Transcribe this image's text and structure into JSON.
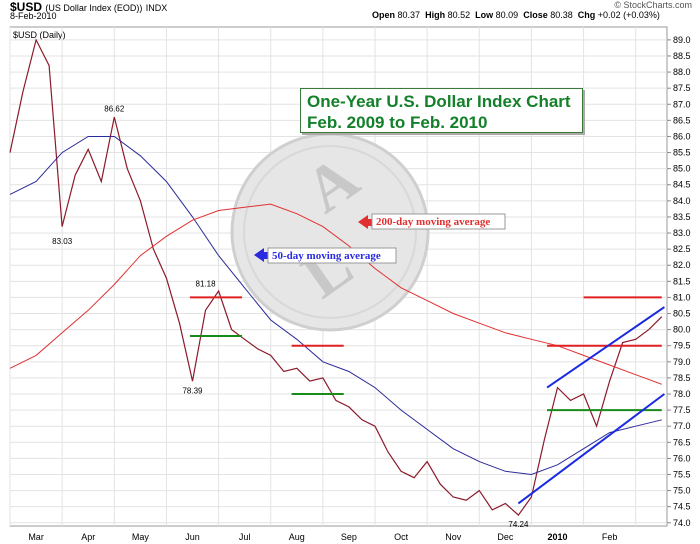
{
  "header": {
    "symbol": "$USD",
    "name": "(US Dollar Index (EOD))",
    "exchange": "INDX",
    "date": "8-Feb-2010",
    "watermark": "© StockCharts.com",
    "panel_label": "$USD (Daily)",
    "open_label": "Open",
    "open": "80.37",
    "high_label": "High",
    "high": "80.52",
    "low_label": "Low",
    "low": "80.09",
    "close_label": "Close",
    "close": "80.38",
    "chg_label": "Chg",
    "chg": "+0.02 (+0.03%)"
  },
  "annotation": {
    "title_line1": "One-Year U.S. Dollar Index Chart",
    "title_line2": "Feb. 2009 to Feb. 2010",
    "ma200_label": "200-day moving average",
    "ma50_label": "50-day moving average"
  },
  "colors": {
    "price": "#8b1a2b",
    "ma50": "#2a2a9a",
    "ma200": "#e03030",
    "resistance": "#e02020",
    "support": "#1a8a1a",
    "trend": "#1a2ae0",
    "title": "#13802a"
  },
  "chart_data": {
    "type": "line",
    "title": "$USD (Daily)",
    "ylim": [
      73.9,
      89.4
    ],
    "y_ticks": [
      "89.0",
      "88.5",
      "88.0",
      "87.5",
      "87.0",
      "86.5",
      "86.0",
      "85.5",
      "85.0",
      "84.5",
      "84.0",
      "83.5",
      "83.0",
      "82.5",
      "82.0",
      "81.5",
      "81.0",
      "80.5",
      "80.0",
      "79.5",
      "79.0",
      "78.5",
      "78.0",
      "77.5",
      "77.0",
      "76.5",
      "76.0",
      "75.5",
      "75.0",
      "74.5",
      "74.0"
    ],
    "x_labels": [
      {
        "t": 0.5,
        "label": "Mar"
      },
      {
        "t": 1.5,
        "label": "Apr"
      },
      {
        "t": 2.5,
        "label": "May"
      },
      {
        "t": 3.5,
        "label": "Jun"
      },
      {
        "t": 4.5,
        "label": "Jul"
      },
      {
        "t": 5.5,
        "label": "Aug"
      },
      {
        "t": 6.5,
        "label": "Sep"
      },
      {
        "t": 7.5,
        "label": "Oct"
      },
      {
        "t": 8.5,
        "label": "Nov"
      },
      {
        "t": 9.5,
        "label": "Dec"
      },
      {
        "t": 10.5,
        "label": "2010",
        "bold": true
      },
      {
        "t": 11.5,
        "label": "Feb"
      }
    ],
    "series": [
      {
        "name": "Price",
        "x": [
          0,
          0.25,
          0.5,
          0.75,
          1,
          1.25,
          1.5,
          1.75,
          2,
          2.25,
          2.5,
          2.75,
          3,
          3.25,
          3.5,
          3.75,
          4,
          4.25,
          4.5,
          4.75,
          5,
          5.25,
          5.5,
          5.75,
          6,
          6.25,
          6.5,
          6.75,
          7,
          7.25,
          7.5,
          7.75,
          8,
          8.25,
          8.5,
          8.75,
          9,
          9.25,
          9.5,
          9.75,
          10,
          10.25,
          10.5,
          10.75,
          11,
          11.25,
          11.5,
          11.75,
          12,
          12.25,
          12.5
        ],
        "values": [
          85.5,
          87.4,
          89.0,
          88.2,
          83.2,
          84.8,
          85.6,
          84.6,
          86.6,
          85.0,
          84.0,
          82.5,
          81.6,
          80.2,
          78.4,
          80.6,
          81.2,
          80.0,
          79.7,
          79.4,
          79.2,
          78.7,
          78.8,
          78.4,
          78.5,
          77.8,
          77.6,
          77.2,
          77.0,
          76.2,
          75.6,
          75.4,
          75.9,
          75.2,
          74.8,
          74.7,
          75.0,
          74.4,
          74.6,
          74.24,
          74.8,
          76.6,
          78.2,
          77.8,
          78.0,
          77.0,
          78.4,
          79.6,
          79.7,
          80.0,
          80.4
        ]
      },
      {
        "name": "50-day moving average",
        "x": [
          0,
          0.5,
          1,
          1.5,
          2,
          2.5,
          3,
          3.5,
          4,
          4.5,
          5,
          5.5,
          6,
          6.5,
          7,
          7.5,
          8,
          8.5,
          9,
          9.5,
          10,
          10.5,
          11,
          11.5,
          12,
          12.5
        ],
        "values": [
          84.2,
          84.6,
          85.5,
          86.0,
          86.0,
          85.4,
          84.6,
          83.5,
          82.3,
          81.3,
          80.3,
          79.7,
          79.0,
          78.7,
          78.2,
          77.5,
          76.9,
          76.3,
          75.9,
          75.6,
          75.5,
          75.8,
          76.3,
          76.8,
          77.0,
          77.2
        ]
      },
      {
        "name": "200-day moving average",
        "x": [
          0,
          0.5,
          1,
          1.5,
          2,
          2.5,
          3,
          3.5,
          4,
          4.5,
          5,
          5.5,
          6,
          6.5,
          7,
          7.5,
          8,
          8.5,
          9,
          9.5,
          10,
          10.5,
          11,
          11.5,
          12,
          12.5
        ],
        "values": [
          78.8,
          79.2,
          79.9,
          80.6,
          81.4,
          82.3,
          82.9,
          83.4,
          83.7,
          83.8,
          83.9,
          83.6,
          83.2,
          82.6,
          81.9,
          81.3,
          80.9,
          80.5,
          80.2,
          79.9,
          79.7,
          79.5,
          79.2,
          78.9,
          78.6,
          78.3
        ]
      }
    ],
    "data_labels": [
      {
        "x": 2.0,
        "y": 86.62,
        "text": "86.62",
        "pos": "above"
      },
      {
        "x": 1.0,
        "y": 83.03,
        "text": "83.03",
        "pos": "below"
      },
      {
        "x": 3.75,
        "y": 81.18,
        "text": "81.18",
        "pos": "above"
      },
      {
        "x": 3.5,
        "y": 78.39,
        "text": "78.39",
        "pos": "below"
      },
      {
        "x": 9.75,
        "y": 74.24,
        "text": "74.24",
        "pos": "below"
      }
    ],
    "horizontal_lines": [
      {
        "color_key": "resistance",
        "x0": 3.45,
        "x1": 4.45,
        "y": 81.0
      },
      {
        "color_key": "support",
        "x0": 3.45,
        "x1": 4.45,
        "y": 79.8
      },
      {
        "color_key": "resistance",
        "x0": 5.4,
        "x1": 6.4,
        "y": 79.5
      },
      {
        "color_key": "support",
        "x0": 5.4,
        "x1": 6.4,
        "y": 78.0
      },
      {
        "color_key": "resistance",
        "x0": 11.0,
        "x1": 12.5,
        "y": 81.0
      },
      {
        "color_key": "resistance",
        "x0": 10.3,
        "x1": 12.5,
        "y": 79.5
      },
      {
        "color_key": "support",
        "x0": 10.3,
        "x1": 12.5,
        "y": 77.5
      }
    ],
    "trend_lines": [
      {
        "x0": 10.3,
        "y0": 78.2,
        "x1": 12.55,
        "y1": 80.7
      },
      {
        "x0": 9.75,
        "y0": 74.6,
        "x1": 12.55,
        "y1": 78.0
      }
    ],
    "grid": true
  }
}
